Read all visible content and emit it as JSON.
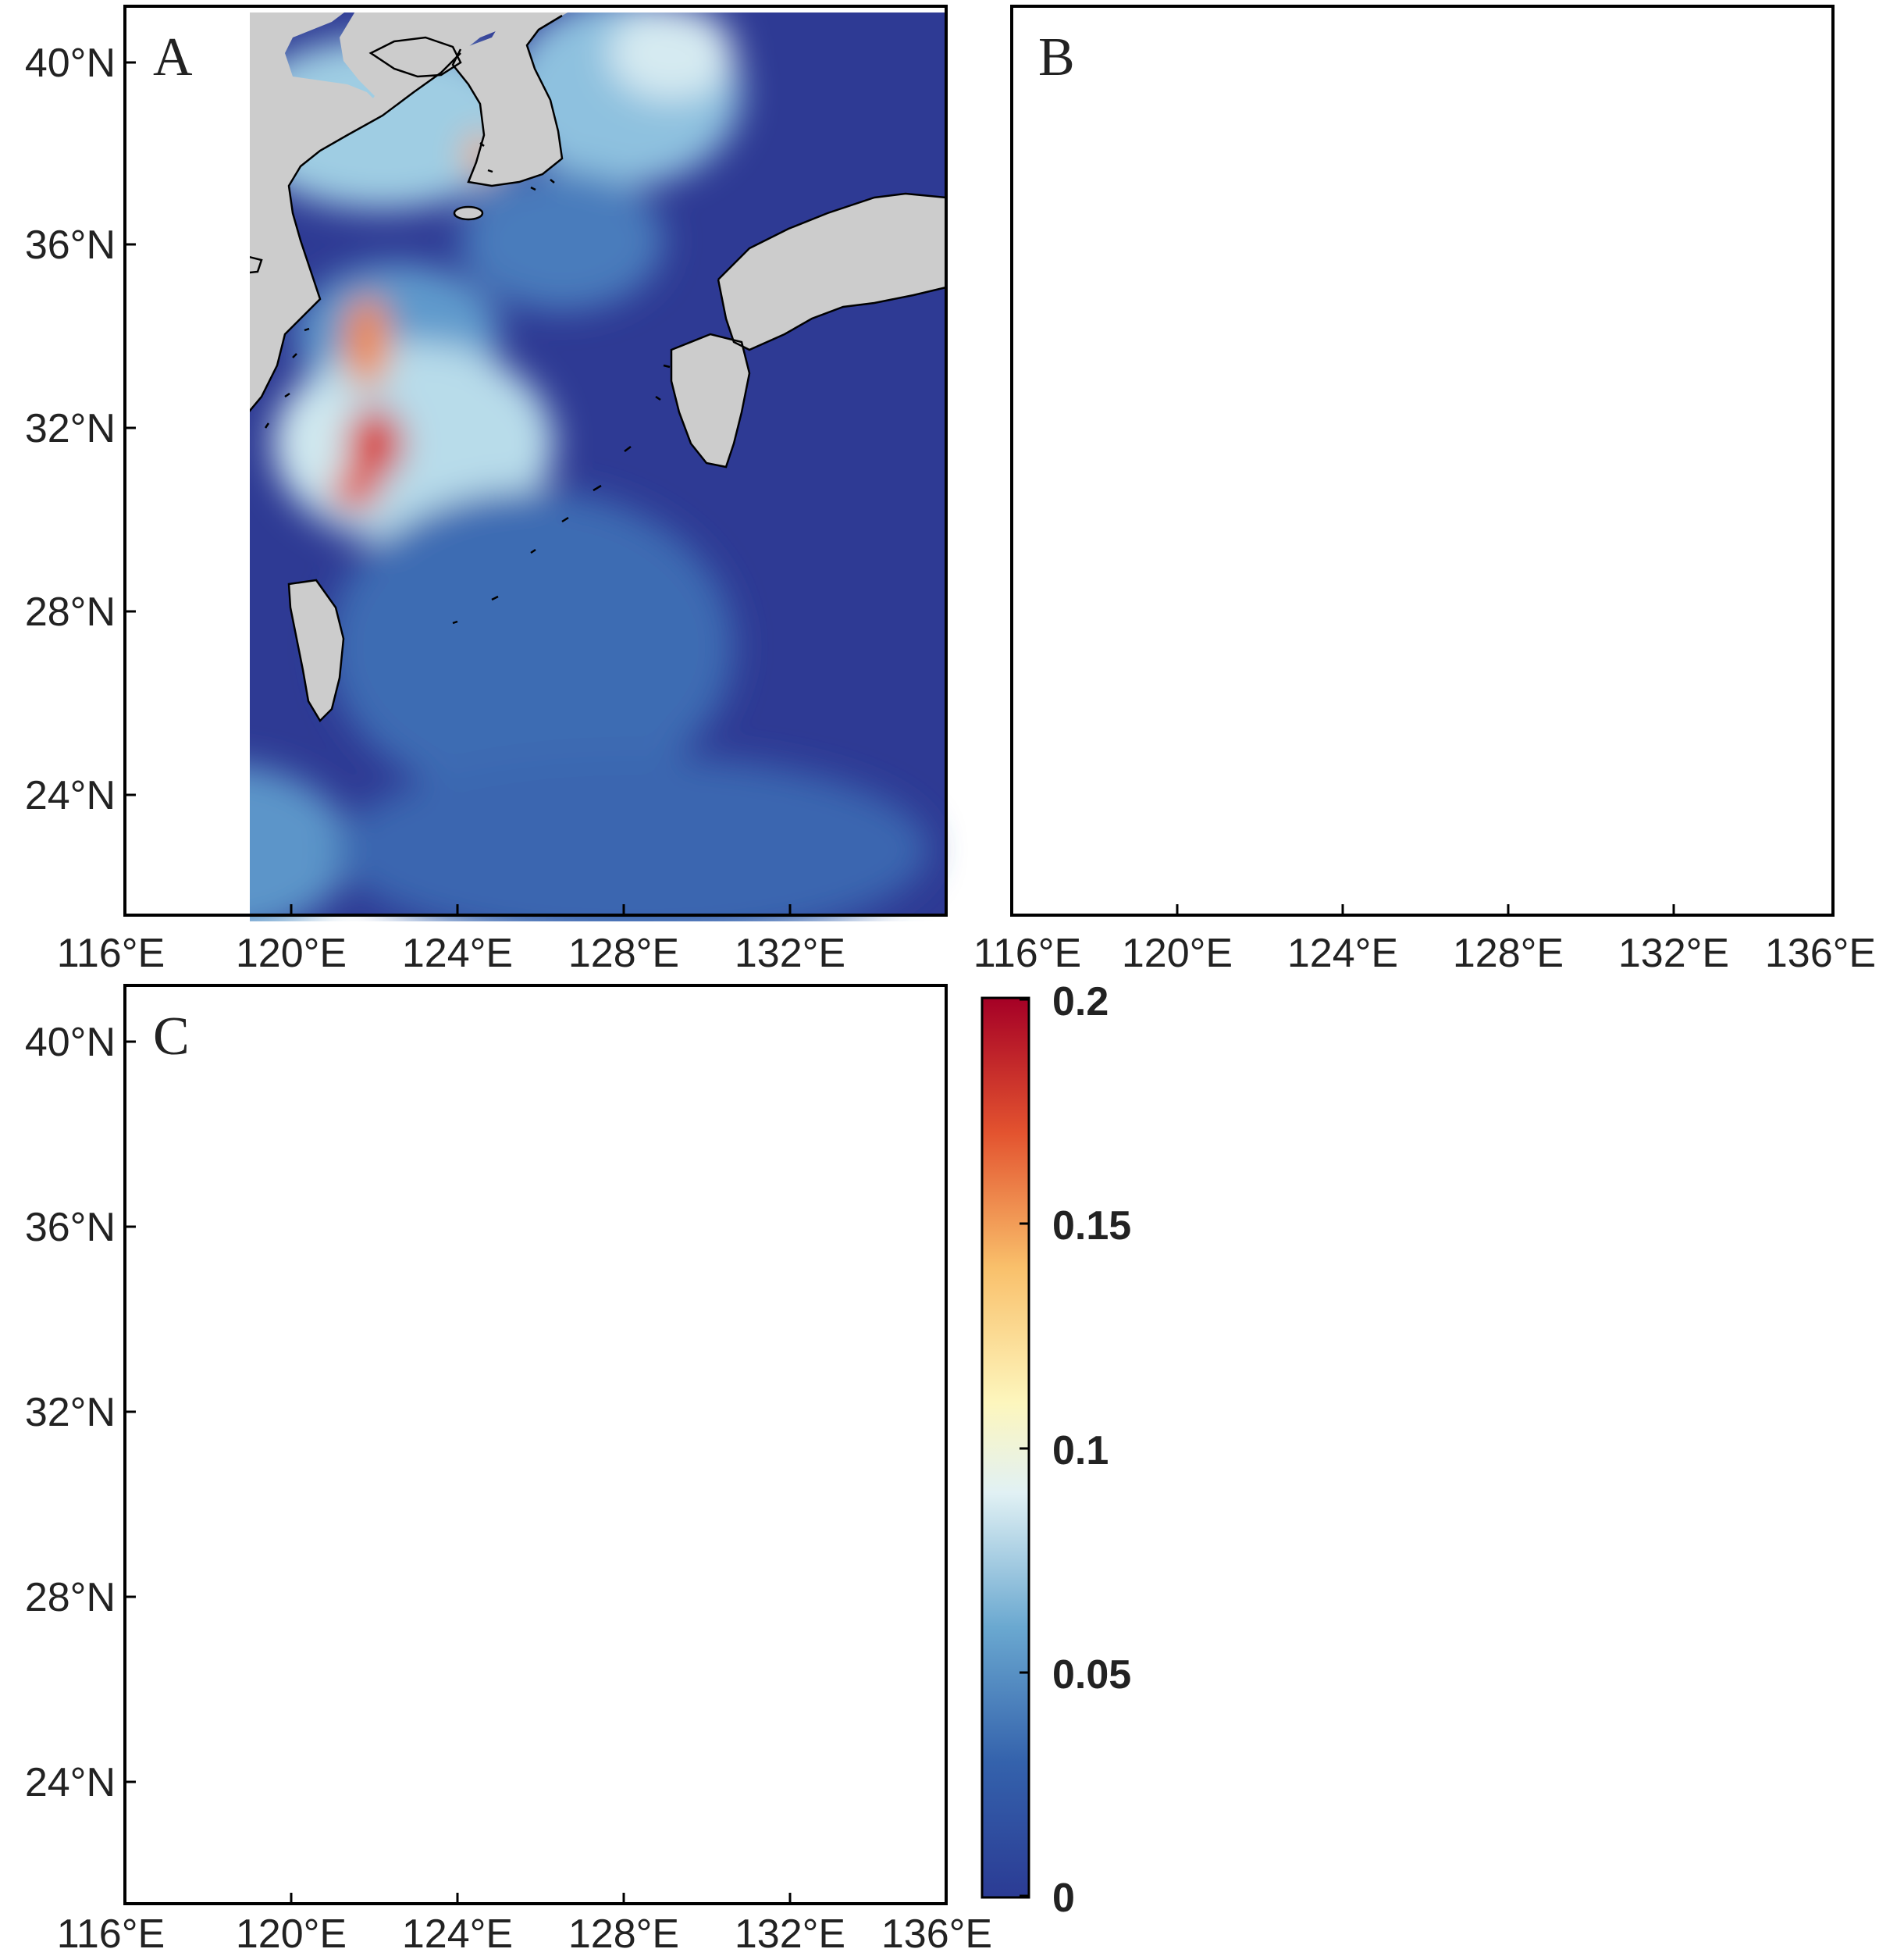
{
  "figure": {
    "panels": [
      {
        "label": "A",
        "lon_ticks": [
          "116°E",
          "120°E",
          "124°E",
          "128°E",
          "132°E"
        ],
        "lat_ticks": [
          "40°N",
          "36°N",
          "32°N",
          "28°N",
          "24°N"
        ]
      },
      {
        "label": "B",
        "lon_ticks": [
          "116°E",
          "120°E",
          "124°E",
          "128°E",
          "132°E",
          "136°E"
        ],
        "lat_ticks": []
      },
      {
        "label": "C",
        "lon_ticks": [
          "116°E",
          "120°E",
          "124°E",
          "128°E",
          "132°E",
          "136°E"
        ],
        "lat_ticks": [
          "40°N",
          "36°N",
          "32°N",
          "28°N",
          "24°N"
        ]
      }
    ],
    "extent": {
      "lon": [
        116,
        136
      ],
      "lat": [
        21,
        41
      ]
    },
    "colorbar": {
      "ticks": [
        "0.2",
        "0.15",
        "0.1",
        "0.05",
        "0"
      ],
      "range": [
        0,
        0.2
      ],
      "colors": [
        "#2b3b94",
        "#3a68b0",
        "#7fb8d8",
        "#e6f3f6",
        "#fbf3b0",
        "#f7a255",
        "#d7302a",
        "#a50026"
      ]
    },
    "colors": {
      "land": "#cccccc",
      "ocean_base": "#2e3a94",
      "coastline": "#000000"
    }
  }
}
